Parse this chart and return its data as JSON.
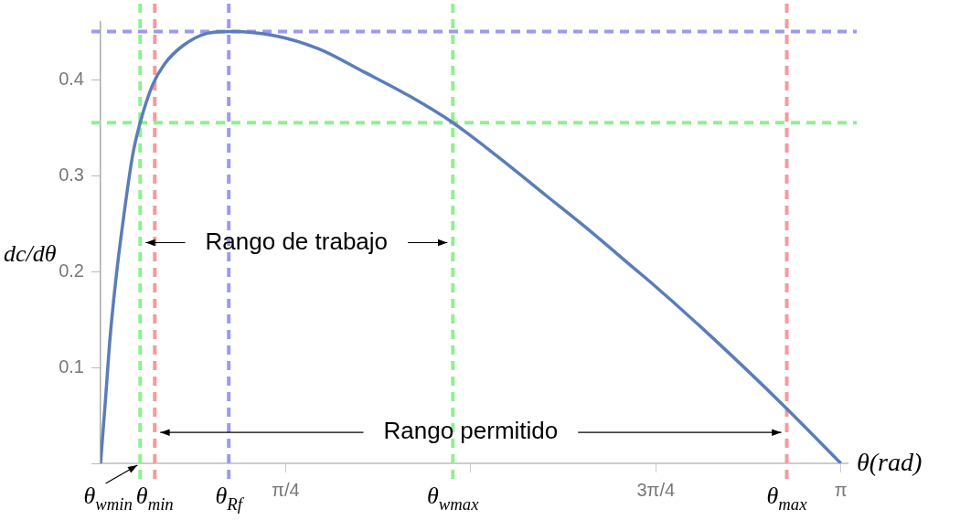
{
  "chart_data": {
    "type": "line",
    "xlabel": "θ(rad)",
    "ylabel": "dc/dθ",
    "x": [
      0,
      0.021,
      0.04,
      0.066,
      0.098,
      0.136,
      0.168,
      0.22,
      0.271,
      0.348,
      0.45,
      0.544,
      0.733,
      0.925,
      1.117,
      1.309,
      1.495,
      1.694,
      1.886,
      2.078,
      2.27,
      2.333,
      2.592,
      2.912,
      3.1416
    ],
    "series": [
      {
        "color": "#5b7db8",
        "values": [
          0,
          0.067,
          0.13,
          0.194,
          0.257,
          0.321,
          0.355,
          0.394,
          0.416,
          0.435,
          0.448,
          0.45,
          0.446,
          0.432,
          0.408,
          0.383,
          0.355,
          0.318,
          0.28,
          0.242,
          0.202,
          0.189,
          0.132,
          0.057,
          0
        ]
      }
    ],
    "xlim": [
      0,
      3.17
    ],
    "ylim": [
      0,
      0.46
    ],
    "xticks": [
      {
        "value": 0.7854,
        "label": "π/4"
      },
      {
        "value": 1.5708,
        "label": null
      },
      {
        "value": 2.3562,
        "label": "3π/4"
      },
      {
        "value": 3.1416,
        "label": "π"
      }
    ],
    "yticks": [
      {
        "value": 0,
        "label": null
      },
      0.1,
      0.2,
      0.3,
      0.4
    ],
    "ref_lines": [
      {
        "axis": "x",
        "value": 0.168,
        "label": "θ$_{wmin}$",
        "color": "#90f090",
        "line_style": "dashed"
      },
      {
        "axis": "x",
        "value": 0.23,
        "label": "θ$_{min}$",
        "color": "#f79a9a",
        "line_style": "dashed"
      },
      {
        "axis": "x",
        "value": 0.544,
        "label": "θ$_{Rf}$",
        "color": "#9a9af5",
        "line_style": "dashed"
      },
      {
        "axis": "x",
        "value": 1.495,
        "label": "θ$_{wmax}$",
        "color": "#90f090",
        "line_style": "dashed"
      },
      {
        "axis": "x",
        "value": 2.912,
        "label": "θ$_{max}$",
        "color": "#f79a9a",
        "line_style": "dashed"
      },
      {
        "axis": "y",
        "value": 0.45,
        "color": "#9a9af5",
        "line_style": "dashed"
      },
      {
        "axis": "y",
        "value": 0.355,
        "color": "#90f090",
        "line_style": "dashed"
      }
    ],
    "annotations": [
      "Rango de trabajo",
      "Rango permitido"
    ],
    "grid": false,
    "legend": false,
    "marker": "none",
    "line_style": "solid"
  }
}
